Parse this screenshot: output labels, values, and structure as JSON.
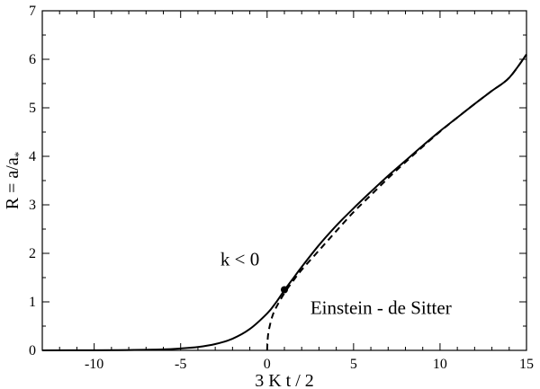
{
  "chart_data": {
    "type": "line",
    "xlabel": "3 K t / 2",
    "ylabel_parts": {
      "main": "R = a/a",
      "sub": "*"
    },
    "xlim": [
      -13,
      15
    ],
    "ylim": [
      0,
      7
    ],
    "x_ticks": [
      -10,
      -5,
      0,
      5,
      10,
      15
    ],
    "y_ticks": [
      0,
      1,
      2,
      3,
      4,
      5,
      6,
      7
    ],
    "series": [
      {
        "style": "solid",
        "points": [
          [
            -13,
            0.001
          ],
          [
            -10,
            0.003
          ],
          [
            -8,
            0.007
          ],
          [
            -6,
            0.02
          ],
          [
            -5,
            0.04
          ],
          [
            -4,
            0.07
          ],
          [
            -3,
            0.13
          ],
          [
            -2,
            0.24
          ],
          [
            -1,
            0.44
          ],
          [
            0,
            0.76
          ],
          [
            0.5,
            0.98
          ],
          [
            1,
            1.24
          ],
          [
            1.5,
            1.48
          ],
          [
            2,
            1.72
          ],
          [
            3,
            2.17
          ],
          [
            4,
            2.57
          ],
          [
            5,
            2.93
          ],
          [
            6,
            3.27
          ],
          [
            7,
            3.6
          ],
          [
            8,
            3.91
          ],
          [
            9,
            4.22
          ],
          [
            10,
            4.52
          ],
          [
            11,
            4.8
          ],
          [
            12,
            5.08
          ],
          [
            13,
            5.35
          ],
          [
            14,
            5.62
          ],
          [
            15,
            6.1
          ]
        ]
      },
      {
        "style": "dashed",
        "points": [
          [
            0,
            0
          ],
          [
            0.05,
            0.3
          ],
          [
            0.15,
            0.5
          ],
          [
            0.3,
            0.7
          ],
          [
            0.5,
            0.87
          ],
          [
            1,
            1.18
          ],
          [
            1.5,
            1.43
          ],
          [
            2,
            1.66
          ],
          [
            3,
            2.06
          ],
          [
            4,
            2.46
          ],
          [
            5,
            2.85
          ],
          [
            6,
            3.2
          ],
          [
            7,
            3.55
          ],
          [
            8,
            3.88
          ],
          [
            9,
            4.2
          ],
          [
            10,
            4.51
          ],
          [
            11,
            4.8
          ],
          [
            12,
            5.08
          ],
          [
            13,
            5.35
          ],
          [
            14,
            5.62
          ],
          [
            15,
            6.1
          ]
        ]
      }
    ],
    "marker": {
      "x": 1,
      "y": 1.25
    },
    "annotations": [
      {
        "text": "k < 0",
        "x": -2.7,
        "y": 1.75
      },
      {
        "text": "Einstein - de Sitter",
        "x": 2.5,
        "y": 0.75
      }
    ]
  }
}
